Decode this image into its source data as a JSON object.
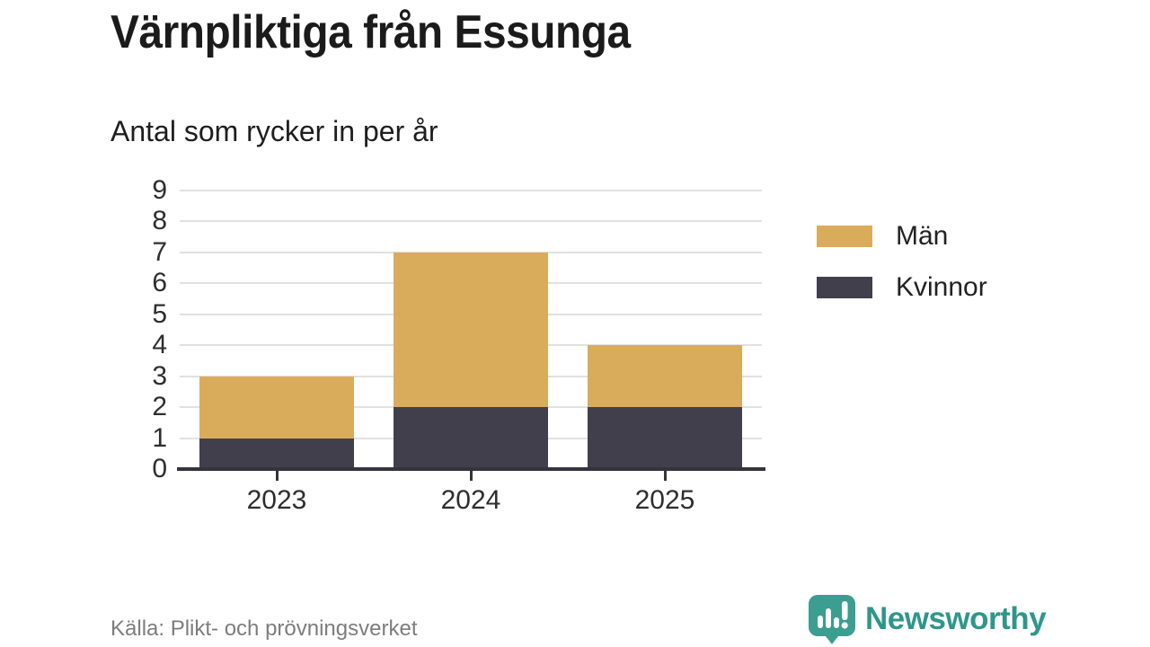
{
  "header": {
    "title": "Värnpliktiga från Essunga",
    "subtitle": "Antal som rycker in per år"
  },
  "chart_data": {
    "type": "bar",
    "stacked": true,
    "title": "Värnpliktiga från Essunga",
    "subtitle": "Antal som rycker in per år",
    "categories": [
      "2023",
      "2024",
      "2025"
    ],
    "series": [
      {
        "name": "Män",
        "color": "#d9ac5b",
        "values": [
          2,
          5,
          2
        ]
      },
      {
        "name": "Kvinnor",
        "color": "#413f4c",
        "values": [
          1,
          2,
          2
        ]
      }
    ],
    "totals": [
      3,
      7,
      4
    ],
    "xlabel": "",
    "ylabel": "",
    "ylim": [
      0,
      9
    ],
    "ytick_step": 1,
    "yticks": [
      0,
      1,
      2,
      3,
      4,
      5,
      6,
      7,
      8,
      9
    ],
    "grid": "horizontal",
    "legend_position": "right"
  },
  "legend": {
    "items": [
      {
        "label": "Män",
        "color": "#d9ac5b"
      },
      {
        "label": "Kvinnor",
        "color": "#413f4c"
      }
    ]
  },
  "footer": {
    "source": "Källa: Plikt- och prövningsverket",
    "brand": "Newsworthy"
  },
  "colors": {
    "men": "#d9ac5b",
    "women": "#413f4c",
    "grid": "#e1e1e1",
    "axis": "#35343e",
    "brand_teal": "#3c9d91",
    "brand_text": "#2f968b",
    "source_text": "#7d7d7d"
  }
}
